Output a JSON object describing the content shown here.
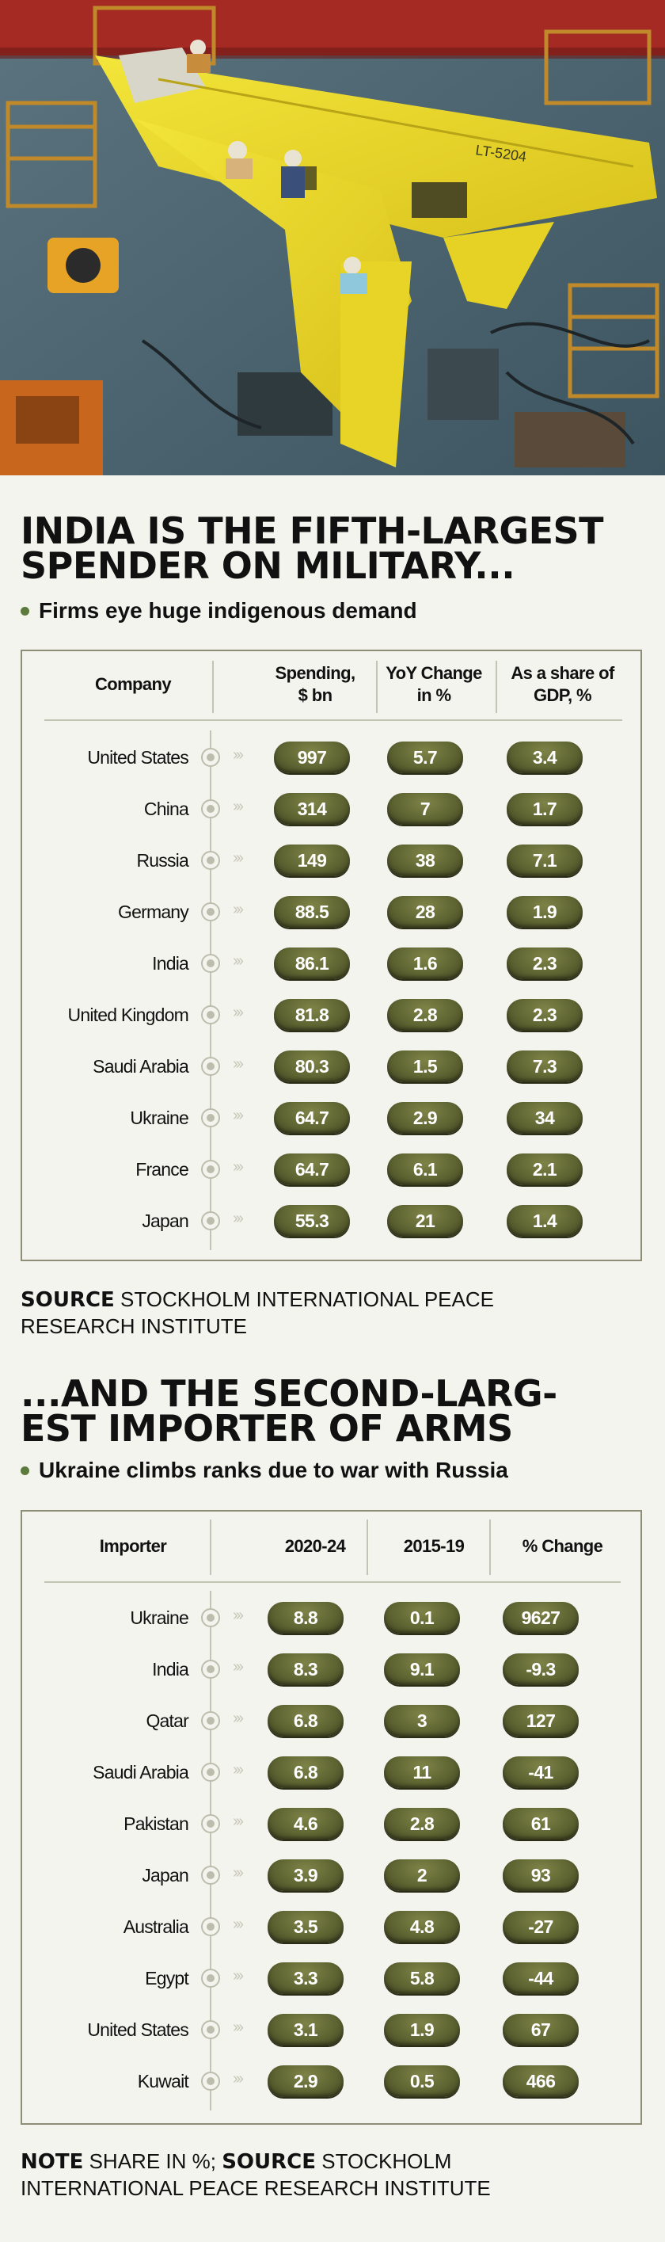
{
  "colors": {
    "background": "#f4f4ee",
    "pill": "#5f6532",
    "accent_dot": "#5b7a3b",
    "border": "#8e8e78"
  },
  "hero": {
    "aircraft_marking": "LT-5204"
  },
  "section1": {
    "headline_line1": "INDIA IS THE FIFTH-LARGEST",
    "headline_line2": "SPENDER ON MILITARY...",
    "subhead": "Firms eye huge indigenous demand",
    "source_label": "SOURCE",
    "source_line1": "STOCKHOLM INTERNATIONAL PEACE",
    "source_line2": "RESEARCH INSTITUTE"
  },
  "section2": {
    "headline_line1": "...AND THE SECOND-LARG-",
    "headline_line2": "EST IMPORTER OF ARMS",
    "subhead": "Ukraine climbs ranks due to war with Russia",
    "note_label": "NOTE",
    "note_text": "SHARE IN %;",
    "source_label": "SOURCE",
    "source_line1": "STOCKHOLM",
    "source_line2": "INTERNATIONAL PEACE RESEARCH INSTITUTE"
  },
  "chart_data": [
    {
      "type": "table",
      "columns": [
        {
          "line1": "Company",
          "line2": ""
        },
        {
          "line1": "Spending,",
          "line2": "$ bn"
        },
        {
          "line1": "YoY Change",
          "line2": "in %"
        },
        {
          "line1": "As a share of",
          "line2": "GDP, %"
        }
      ],
      "rows": [
        {
          "name": "United States",
          "values": [
            "997",
            "5.7",
            "3.4"
          ]
        },
        {
          "name": "China",
          "values": [
            "314",
            "7",
            "1.7"
          ]
        },
        {
          "name": "Russia",
          "values": [
            "149",
            "38",
            "7.1"
          ]
        },
        {
          "name": "Germany",
          "values": [
            "88.5",
            "28",
            "1.9"
          ]
        },
        {
          "name": "India",
          "values": [
            "86.1",
            "1.6",
            "2.3"
          ]
        },
        {
          "name": "United Kingdom",
          "values": [
            "81.8",
            "2.8",
            "2.3"
          ]
        },
        {
          "name": "Saudi Arabia",
          "values": [
            "80.3",
            "1.5",
            "7.3"
          ]
        },
        {
          "name": "Ukraine",
          "values": [
            "64.7",
            "2.9",
            "34"
          ]
        },
        {
          "name": "France",
          "values": [
            "64.7",
            "6.1",
            "2.1"
          ]
        },
        {
          "name": "Japan",
          "values": [
            "55.3",
            "21",
            "1.4"
          ]
        }
      ]
    },
    {
      "type": "table",
      "columns": [
        {
          "line1": "Importer",
          "line2": ""
        },
        {
          "line1": "2020-24",
          "line2": ""
        },
        {
          "line1": "2015-19",
          "line2": ""
        },
        {
          "line1": "% Change",
          "line2": ""
        }
      ],
      "rows": [
        {
          "name": "Ukraine",
          "values": [
            "8.8",
            "0.1",
            "9627"
          ]
        },
        {
          "name": "India",
          "values": [
            "8.3",
            "9.1",
            "-9.3"
          ]
        },
        {
          "name": "Qatar",
          "values": [
            "6.8",
            "3",
            "127"
          ]
        },
        {
          "name": "Saudi Arabia",
          "values": [
            "6.8",
            "11",
            "-41"
          ]
        },
        {
          "name": "Pakistan",
          "values": [
            "4.6",
            "2.8",
            "61"
          ]
        },
        {
          "name": "Japan",
          "values": [
            "3.9",
            "2",
            "93"
          ]
        },
        {
          "name": "Australia",
          "values": [
            "3.5",
            "4.8",
            "-27"
          ]
        },
        {
          "name": "Egypt",
          "values": [
            "3.3",
            "5.8",
            "-44"
          ]
        },
        {
          "name": "United States",
          "values": [
            "3.1",
            "1.9",
            "67"
          ]
        },
        {
          "name": "Kuwait",
          "values": [
            "2.9",
            "0.5",
            "466"
          ]
        }
      ]
    }
  ]
}
